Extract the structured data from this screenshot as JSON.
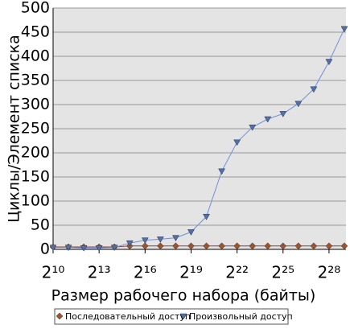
{
  "chart_data": {
    "type": "line",
    "x_label": "Размер рабочего набора (байты)",
    "y_label": "Циклы/Элемент списка",
    "x": [
      1024,
      2048,
      4096,
      8192,
      16384,
      32768,
      65536,
      131072,
      262144,
      524288,
      1048576,
      2097152,
      4194304,
      8388608,
      16777216,
      33554432,
      67108864,
      134217728,
      268435456,
      536870912
    ],
    "xscale": "log2",
    "xlim": [
      1024,
      536870912
    ],
    "xticks": [
      {
        "value": 1024,
        "label": "2¹⁰"
      },
      {
        "value": 8192,
        "label": "2¹³"
      },
      {
        "value": 65536,
        "label": "2¹⁶"
      },
      {
        "value": 524288,
        "label": "2¹⁹"
      },
      {
        "value": 4194304,
        "label": "2²²"
      },
      {
        "value": 33554432,
        "label": "2²⁵"
      },
      {
        "value": 268435456,
        "label": "2²⁸"
      }
    ],
    "ylim": [
      0,
      500
    ],
    "yticks": [
      0,
      50,
      100,
      150,
      200,
      250,
      300,
      350,
      400,
      450,
      500
    ],
    "grid": true,
    "legend": "bottom",
    "series": [
      {
        "name": "Последовательный доступ",
        "color": "#8b3a3a",
        "marker_color": "#a0522d",
        "marker": "diamond",
        "values": [
          5,
          5,
          5,
          5,
          5,
          7,
          7,
          7,
          7,
          7,
          7,
          7,
          7,
          7,
          7,
          7,
          7,
          7,
          7,
          7
        ]
      },
      {
        "name": "Произвольный доступ",
        "color": "#6f8fdf",
        "marker_color": "#4f6faf",
        "marker": "triangle-down",
        "values": [
          4,
          4,
          3,
          3,
          4,
          13,
          19,
          21,
          24,
          36,
          68,
          162,
          222,
          253,
          270,
          281,
          302,
          332,
          389,
          457
        ]
      }
    ]
  }
}
